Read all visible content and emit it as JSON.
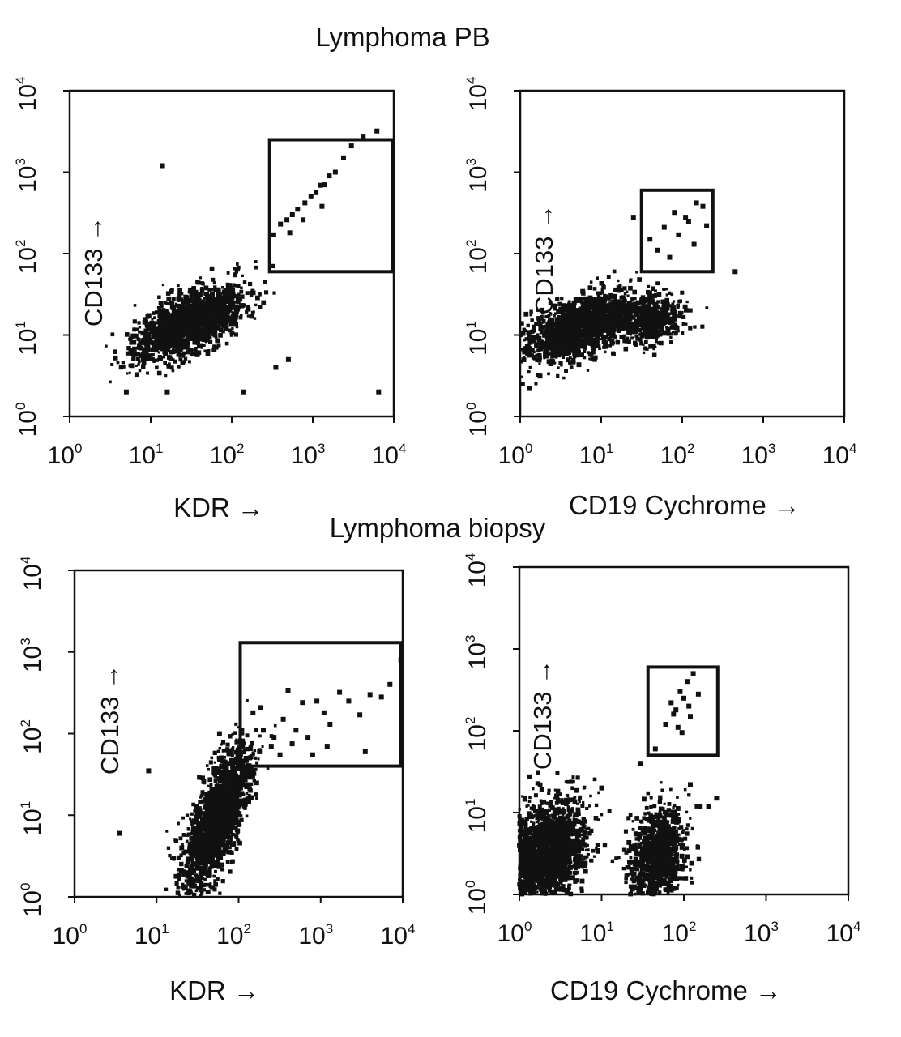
{
  "section_titles": [
    "Lymphoma PB",
    "Lymphoma biopsy"
  ],
  "axis_scale": "log10",
  "tick_labels": [
    "10^0",
    "10^1",
    "10^2",
    "10^3",
    "10^4"
  ],
  "chart_data": [
    {
      "type": "scatter",
      "group": "Lymphoma PB",
      "xlabel": "KDR →",
      "ylabel": "CD133 →",
      "xlim": [
        1,
        10000
      ],
      "ylim": [
        1,
        10000
      ],
      "gate": {
        "x": [
          280,
          10000
        ],
        "y": [
          60,
          2500
        ]
      },
      "populations": [
        {
          "name": "main",
          "center": [
            30,
            14
          ],
          "spread": [
            0.33,
            0.22
          ],
          "corr": 0.62,
          "n": 1700
        }
      ],
      "points": [
        [
          330,
          170
        ],
        [
          400,
          230
        ],
        [
          480,
          260
        ],
        [
          560,
          300
        ],
        [
          650,
          350
        ],
        [
          800,
          420
        ],
        [
          950,
          500
        ],
        [
          1100,
          560
        ],
        [
          1250,
          690
        ],
        [
          1400,
          700
        ],
        [
          1600,
          900
        ],
        [
          1900,
          1000
        ],
        [
          2400,
          1500
        ],
        [
          3000,
          2100
        ],
        [
          4200,
          2700
        ],
        [
          6200,
          3200
        ],
        [
          520,
          180
        ],
        [
          760,
          260
        ],
        [
          1300,
          380
        ],
        [
          14,
          1200
        ],
        [
          5,
          2
        ],
        [
          16,
          2
        ],
        [
          140,
          2
        ],
        [
          6500,
          2
        ],
        [
          350,
          4
        ],
        [
          500,
          5
        ]
      ]
    },
    {
      "type": "scatter",
      "group": "Lymphoma PB",
      "xlabel": "CD19 Cychrome →",
      "ylabel": "CD133 →",
      "xlim": [
        1,
        10000
      ],
      "ylim": [
        1,
        10000
      ],
      "gate": {
        "x": [
          30,
          250
        ],
        "y": [
          60,
          600
        ]
      },
      "populations": [
        {
          "name": "main",
          "center": [
            6,
            13
          ],
          "spread": [
            0.35,
            0.22
          ],
          "corr": 0.55,
          "n": 1500
        },
        {
          "name": "cd19-positive",
          "center": [
            40,
            15
          ],
          "spread": [
            0.2,
            0.14
          ],
          "corr": 0.1,
          "n": 500
        }
      ],
      "points": [
        [
          40,
          150
        ],
        [
          60,
          210
        ],
        [
          80,
          320
        ],
        [
          110,
          280
        ],
        [
          150,
          420
        ],
        [
          180,
          380
        ],
        [
          90,
          170
        ],
        [
          120,
          250
        ],
        [
          200,
          220
        ],
        [
          140,
          130
        ],
        [
          50,
          110
        ],
        [
          70,
          90
        ],
        [
          450,
          60
        ],
        [
          25,
          280
        ],
        [
          1.3,
          2.2
        ]
      ]
    },
    {
      "type": "scatter",
      "group": "Lymphoma biopsy",
      "xlabel": "KDR →",
      "ylabel": "CD133 →",
      "xlim": [
        1,
        10000
      ],
      "ylim": [
        1,
        10000
      ],
      "gate": {
        "x": [
          100,
          10000
        ],
        "y": [
          40,
          1300
        ]
      },
      "populations": [
        {
          "name": "main",
          "center": [
            55,
            9
          ],
          "spread": [
            0.2,
            0.42
          ],
          "corr": 0.7,
          "n": 1800
        }
      ],
      "points": [
        [
          150,
          180
        ],
        [
          200,
          110
        ],
        [
          270,
          90
        ],
        [
          350,
          150
        ],
        [
          400,
          340
        ],
        [
          500,
          110
        ],
        [
          600,
          240
        ],
        [
          700,
          90
        ],
        [
          900,
          250
        ],
        [
          1100,
          180
        ],
        [
          1300,
          130
        ],
        [
          1700,
          320
        ],
        [
          2200,
          250
        ],
        [
          3000,
          170
        ],
        [
          4000,
          300
        ],
        [
          5500,
          280
        ],
        [
          7000,
          400
        ],
        [
          9500,
          800
        ],
        [
          180,
          60
        ],
        [
          250,
          70
        ],
        [
          320,
          55
        ],
        [
          450,
          75
        ],
        [
          800,
          55
        ],
        [
          1200,
          70
        ],
        [
          3500,
          60
        ],
        [
          8,
          35
        ],
        [
          3.5,
          6
        ]
      ]
    },
    {
      "type": "scatter",
      "group": "Lymphoma biopsy",
      "xlabel": "CD19 Cychrome →",
      "ylabel": "CD133 →",
      "xlim": [
        1,
        10000
      ],
      "ylim": [
        1,
        10000
      ],
      "gate": {
        "x": [
          35,
          270
        ],
        "y": [
          50,
          600
        ]
      },
      "populations": [
        {
          "name": "cd19-negative",
          "center": [
            2,
            3
          ],
          "spread": [
            0.26,
            0.32
          ],
          "corr": 0.35,
          "n": 2200
        },
        {
          "name": "cd19-positive",
          "center": [
            48,
            3
          ],
          "spread": [
            0.16,
            0.3
          ],
          "corr": 0.25,
          "n": 1100
        }
      ],
      "points": [
        [
          70,
          220
        ],
        [
          80,
          180
        ],
        [
          90,
          300
        ],
        [
          100,
          250
        ],
        [
          110,
          400
        ],
        [
          120,
          150
        ],
        [
          130,
          500
        ],
        [
          60,
          120
        ],
        [
          150,
          280
        ],
        [
          85,
          110
        ],
        [
          95,
          95
        ],
        [
          75,
          160
        ],
        [
          115,
          200
        ],
        [
          30,
          40
        ],
        [
          45,
          60
        ],
        [
          120,
          22
        ],
        [
          200,
          12
        ],
        [
          250,
          15
        ],
        [
          10,
          20
        ]
      ]
    }
  ]
}
